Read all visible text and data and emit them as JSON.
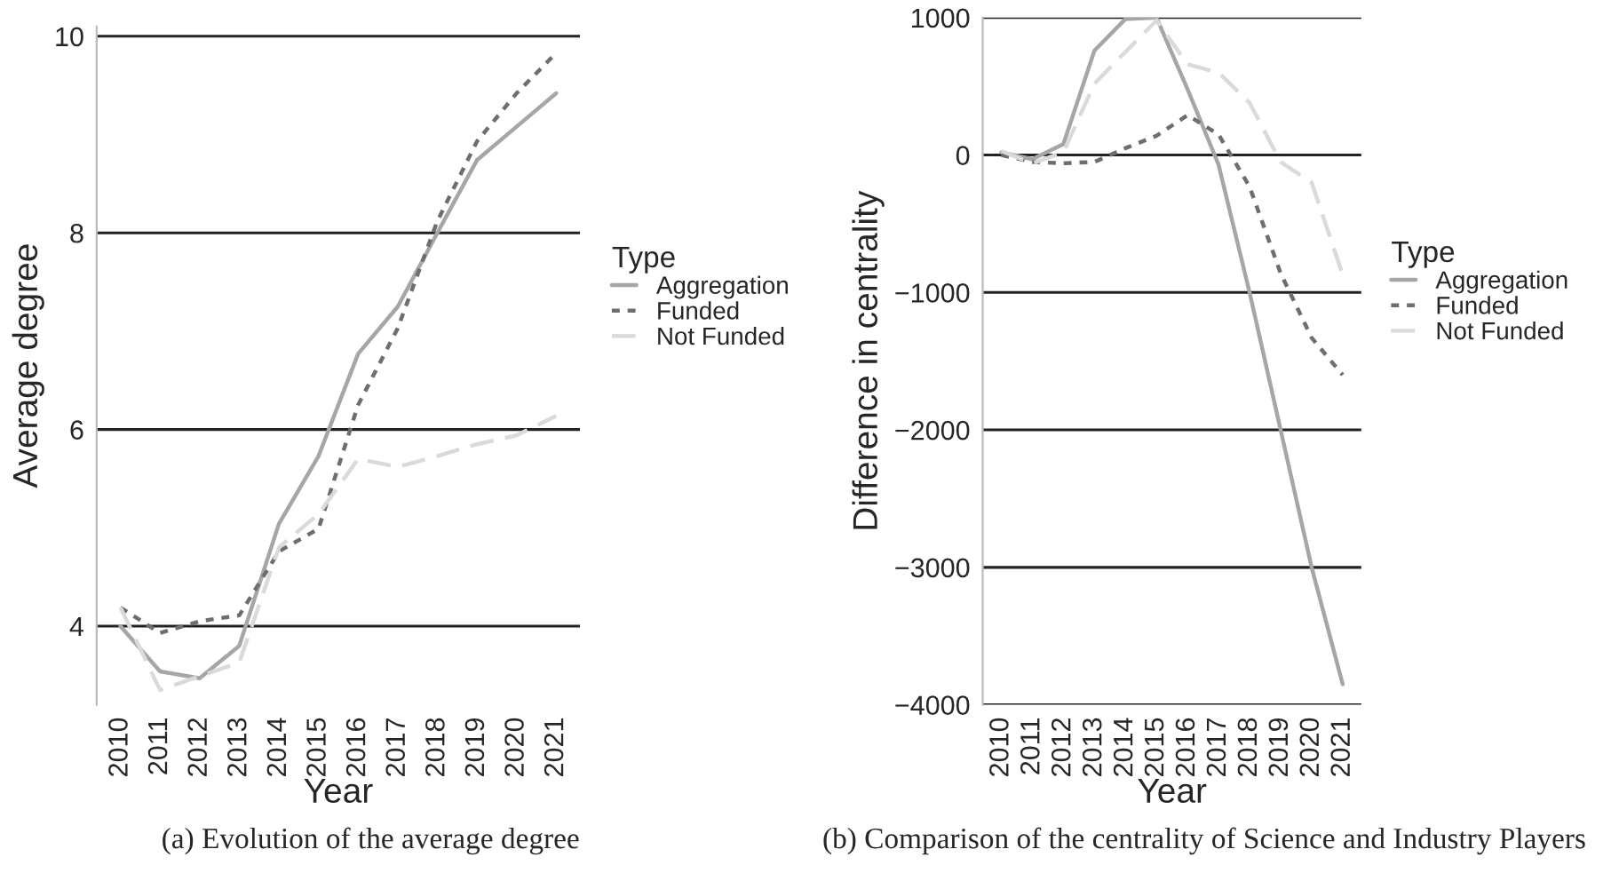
{
  "chart_data": [
    {
      "type": "line",
      "xlabel": "Year",
      "ylabel": "Average degree",
      "legend_title": "Type",
      "legend": "right",
      "grid": "y",
      "categories": [
        "2010",
        "2011",
        "2012",
        "2013",
        "2014",
        "2015",
        "2016",
        "2017",
        "2018",
        "2019",
        "2020",
        "2021"
      ],
      "ylim": [
        3.2,
        10.1
      ],
      "yticks": [
        4,
        6,
        8,
        10
      ],
      "series": [
        {
          "name": "Aggregation",
          "color": "#a6a6a6",
          "line_style": "solid",
          "values": [
            4.0,
            3.54,
            3.47,
            3.8,
            5.04,
            5.73,
            6.77,
            7.25,
            8.0,
            8.74,
            9.08,
            9.42
          ]
        },
        {
          "name": "Funded",
          "color": "#6e6e6e",
          "line_style": "dotted",
          "values": [
            4.19,
            3.93,
            4.05,
            4.11,
            4.76,
            4.99,
            6.25,
            7.03,
            8.12,
            8.93,
            9.42,
            9.83
          ]
        },
        {
          "name": "Not Funded",
          "color": "#dadada",
          "line_style": "dashed",
          "values": [
            4.19,
            3.35,
            3.49,
            3.63,
            4.8,
            5.14,
            5.7,
            5.62,
            5.73,
            5.85,
            5.94,
            6.14
          ]
        }
      ],
      "annotations": [
        "(a) Evolution of the average degree"
      ]
    },
    {
      "type": "line",
      "xlabel": "Year",
      "ylabel": "Difference in centrality",
      "legend_title": "Type",
      "legend": "right",
      "grid": "y",
      "categories": [
        "2010",
        "2011",
        "2012",
        "2013",
        "2014",
        "2015",
        "2016",
        "2017",
        "2018",
        "2019",
        "2020",
        "2021"
      ],
      "ylim": [
        -4000,
        1000
      ],
      "yticks": [
        {
          "value": 1000,
          "label": "1000"
        },
        {
          "value": 0,
          "label": "0"
        },
        {
          "value": -1000,
          "label": "−1000"
        },
        {
          "value": -2000,
          "label": "−2000"
        },
        {
          "value": -3000,
          "label": "−3000"
        },
        {
          "value": -4000,
          "label": "−4000"
        }
      ],
      "series": [
        {
          "name": "Aggregation",
          "color": "#a6a6a6",
          "line_style": "solid",
          "values": [
            20,
            -30,
            80,
            760,
            990,
            1000,
            480,
            -70,
            -1000,
            -2000,
            -3000,
            -3850
          ]
        },
        {
          "name": "Funded",
          "color": "#6e6e6e",
          "line_style": "dotted",
          "values": [
            0,
            -50,
            -60,
            -50,
            50,
            140,
            290,
            150,
            -230,
            -860,
            -1330,
            -1600
          ]
        },
        {
          "name": "Not Funded",
          "color": "#dadada",
          "line_style": "dashed",
          "values": [
            30,
            -60,
            20,
            520,
            750,
            980,
            660,
            600,
            380,
            -50,
            -200,
            -870
          ]
        }
      ],
      "annotations": [
        "(b) Comparison of the centrality of Science and Industry Players"
      ]
    }
  ]
}
